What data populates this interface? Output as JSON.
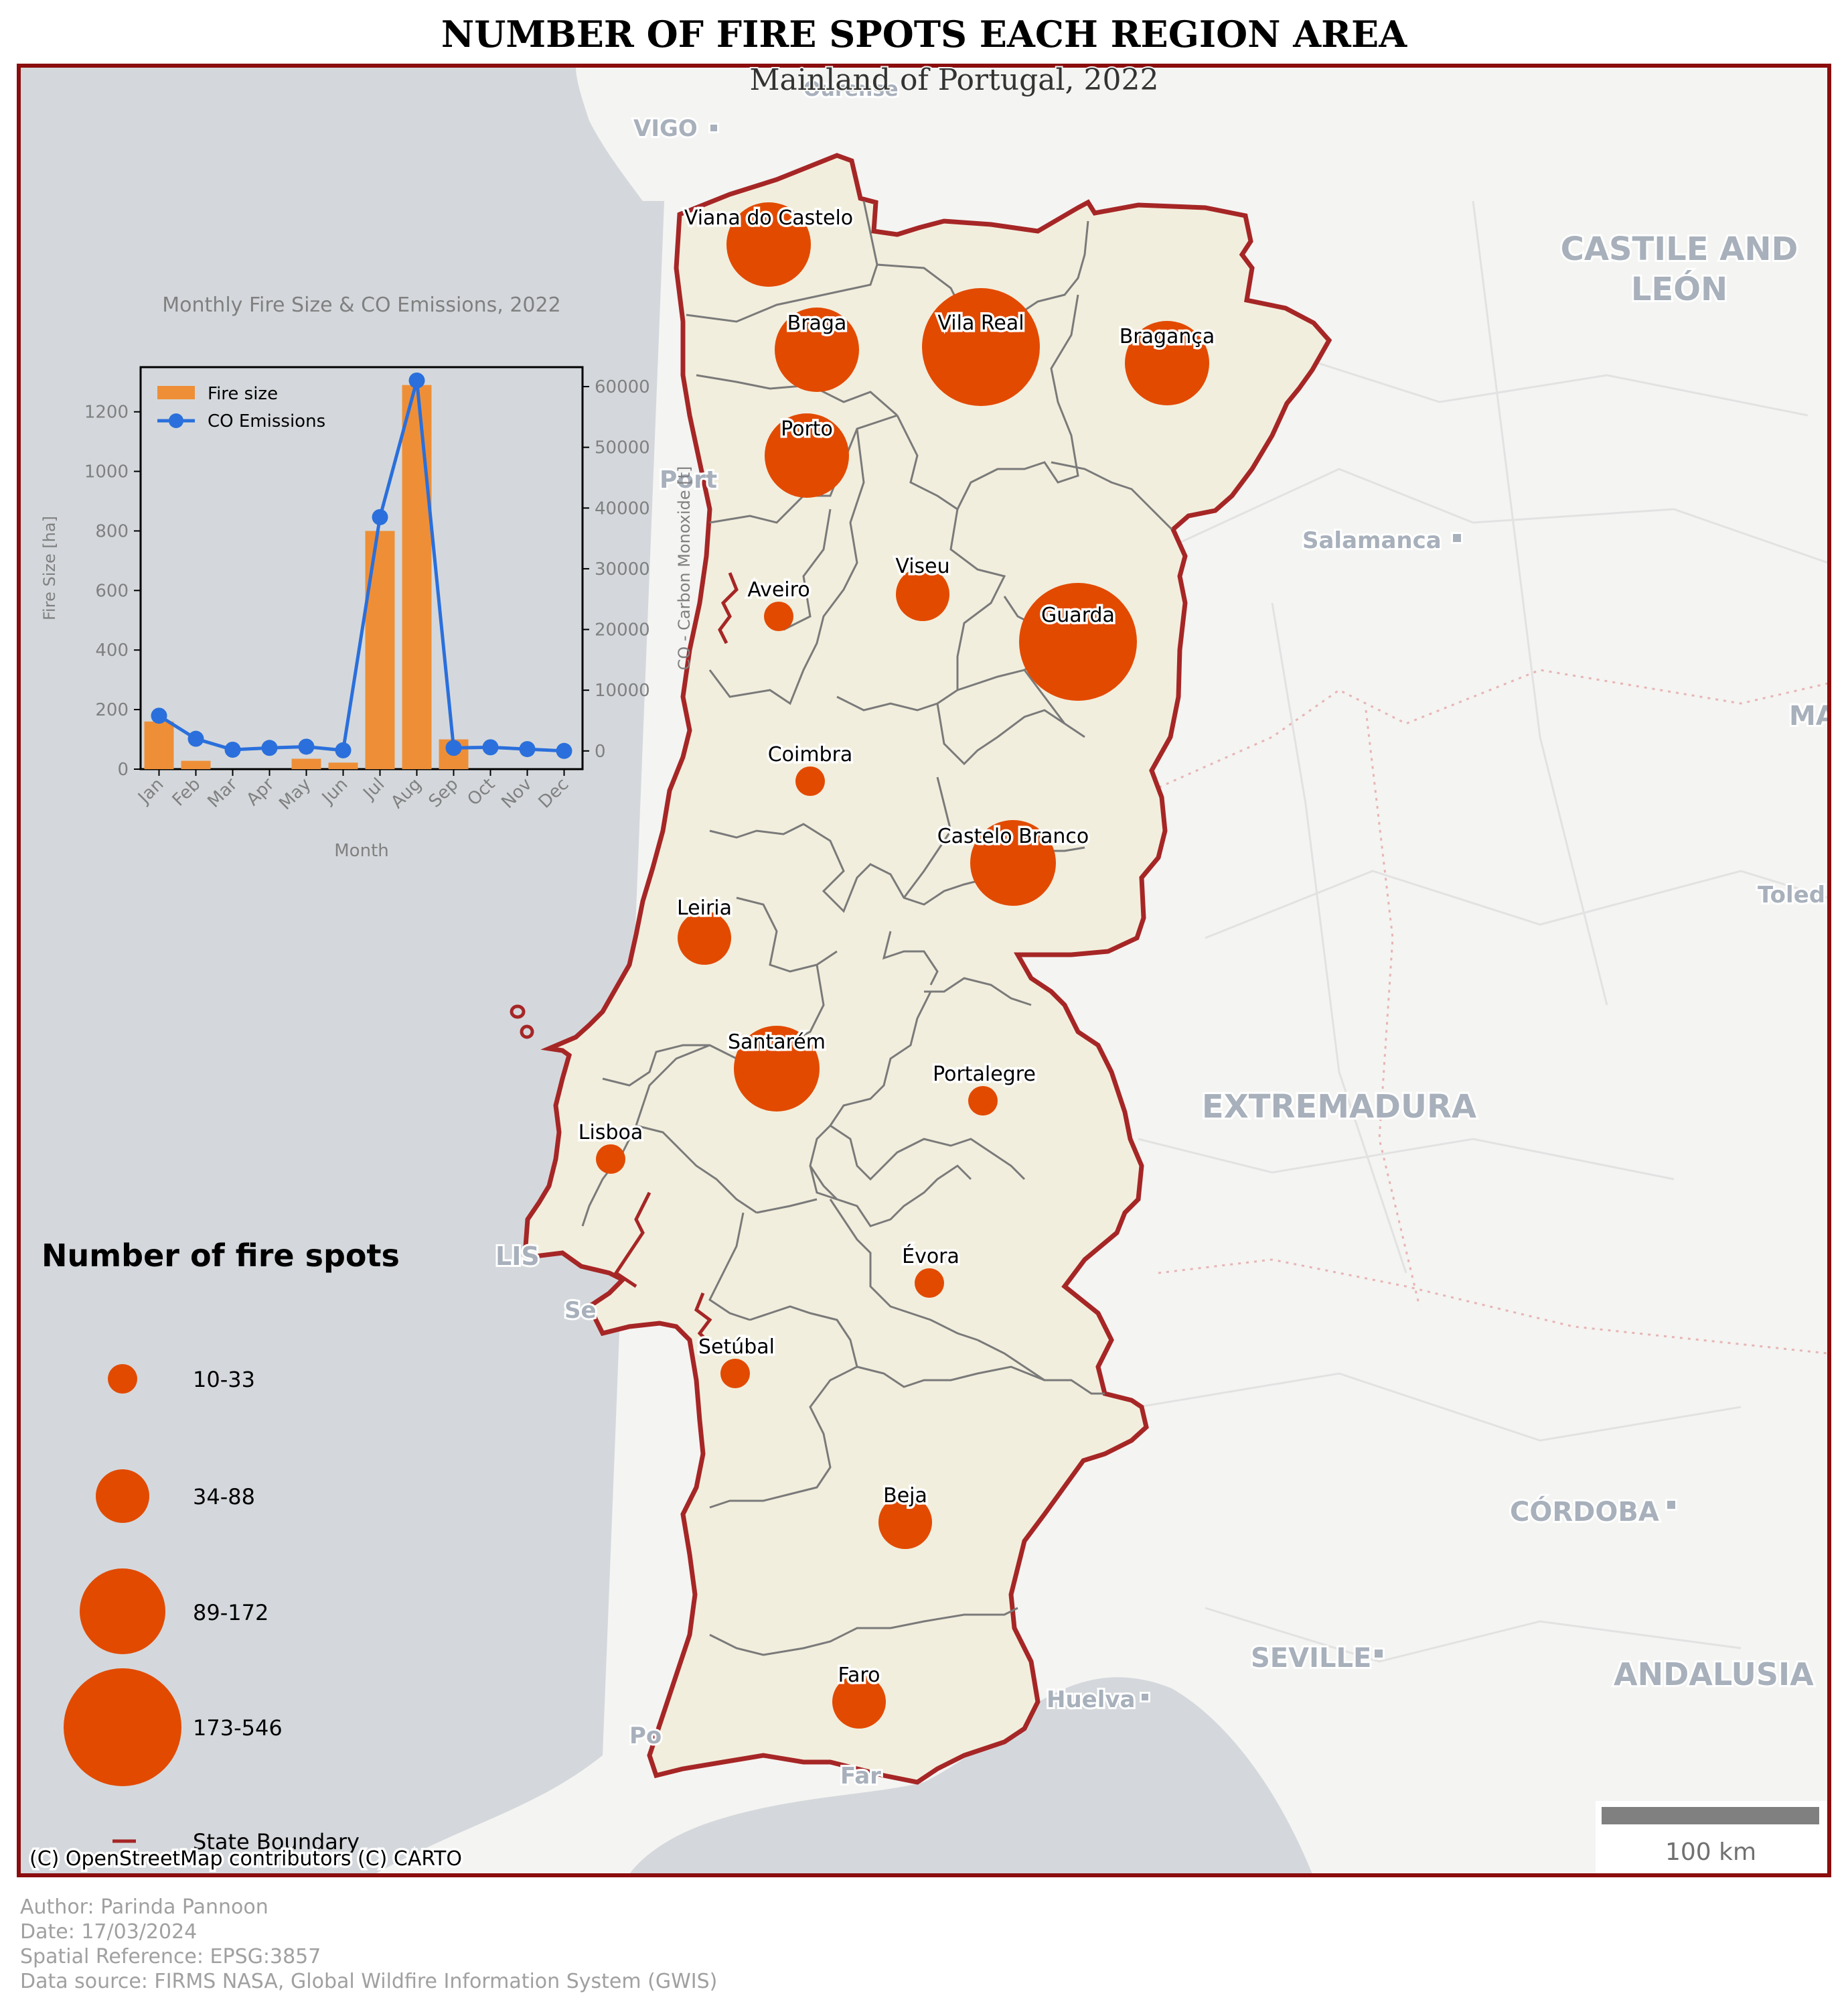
{
  "title": "NUMBER OF FIRE SPOTS EACH REGION AREA",
  "subtitle": "Mainland of Portugal, 2022",
  "colors": {
    "frame": "#8b0d0d",
    "sea": "#d4d8dc",
    "land_other": "#f4f4f2",
    "portugal_fill": "#f2eedd",
    "boundary": "#a62626",
    "district_line": "#7a7a7a",
    "circle": "#e24a00",
    "bar": "#ee8f37",
    "line": "#2a6fdc",
    "footer_text": "#a0a0a0"
  },
  "basemap_labels": [
    {
      "id": "vigo",
      "text": "VIGO",
      "dot": true
    },
    {
      "id": "ourense",
      "text": "Ourense",
      "dot": false
    },
    {
      "id": "castile1",
      "text": "CASTILE AND",
      "dot": false
    },
    {
      "id": "castile2",
      "text": "LEÓN",
      "dot": false
    },
    {
      "id": "salamanca",
      "text": "Salamanca",
      "dot": true
    },
    {
      "id": "ma",
      "text": "MA",
      "dot": false
    },
    {
      "id": "toledo",
      "text": "Toled",
      "dot": false
    },
    {
      "id": "extremadura",
      "text": "EXTREMADURA",
      "dot": false
    },
    {
      "id": "cordoba",
      "text": "CÓRDOBA",
      "dot": true
    },
    {
      "id": "seville",
      "text": "SEVILLE",
      "dot": true
    },
    {
      "id": "huelva",
      "text": "Huelva",
      "dot": true
    },
    {
      "id": "andalusia",
      "text": "ANDALUSIA",
      "dot": false
    },
    {
      "id": "porto_bg",
      "text": "Port",
      "dot": false
    },
    {
      "id": "lisboa_bg",
      "text": "LIS",
      "dot": false
    },
    {
      "id": "setubal_bg",
      "text": "Se",
      "dot": false
    },
    {
      "id": "portimao_bg",
      "text": "Po",
      "dot": false
    },
    {
      "id": "faro_bg",
      "text": "Far",
      "dot": false
    }
  ],
  "districts": [
    {
      "name": "Viana do Castelo",
      "class": "34-88"
    },
    {
      "name": "Braga",
      "class": "34-88"
    },
    {
      "name": "Vila Real",
      "class": "173-546"
    },
    {
      "name": "Bragança",
      "class": "34-88"
    },
    {
      "name": "Porto",
      "class": "34-88"
    },
    {
      "name": "Aveiro",
      "class": "10-33"
    },
    {
      "name": "Viseu",
      "class": "34-88"
    },
    {
      "name": "Guarda",
      "class": "173-546"
    },
    {
      "name": "Coimbra",
      "class": "10-33"
    },
    {
      "name": "Castelo Branco",
      "class": "89-172"
    },
    {
      "name": "Leiria",
      "class": "34-88"
    },
    {
      "name": "Santarém",
      "class": "89-172"
    },
    {
      "name": "Portalegre",
      "class": "10-33"
    },
    {
      "name": "Lisboa",
      "class": "10-33"
    },
    {
      "name": "Évora",
      "class": "10-33"
    },
    {
      "name": "Setúbal",
      "class": "10-33"
    },
    {
      "name": "Beja",
      "class": "34-88"
    },
    {
      "name": "Faro",
      "class": "34-88"
    }
  ],
  "legend": {
    "title": "Number of fire spots",
    "items": [
      "10-33",
      "34-88",
      "89-172",
      "173-546"
    ],
    "boundary_label": "State Boundary"
  },
  "attribution": "(C) OpenStreetMap contributors (C) CARTO",
  "scalebar": {
    "label": "100 km"
  },
  "footer": {
    "author": "Author: Parinda Pannoon",
    "date": "Date: 17/03/2024",
    "srs": "Spatial Reference: EPSG:3857",
    "source": "Data source: FIRMS NASA, Global Wildfire Information System (GWIS)"
  },
  "chart_data": {
    "type": "bar",
    "title": "Monthly Fire Size & CO Emissions, 2022",
    "xlabel": "Month",
    "ylabel": "Fire Size [ha]",
    "y2label": "CO - Carbon Monoxide [t]",
    "categories": [
      "Jan",
      "Feb",
      "Mar",
      "Apr",
      "May",
      "Jun",
      "Jul",
      "Aug",
      "Sep",
      "Oct",
      "Nov",
      "Dec"
    ],
    "series": [
      {
        "name": "Fire size",
        "type": "bar",
        "axis": "left",
        "values": [
          160,
          28,
          0,
          0,
          35,
          22,
          800,
          1290,
          100,
          0,
          0,
          0
        ]
      },
      {
        "name": "CO Emissions",
        "type": "line",
        "axis": "right",
        "values": [
          5800,
          2000,
          200,
          500,
          700,
          100,
          38500,
          61000,
          500,
          600,
          300,
          0
        ]
      }
    ],
    "ylim": [
      0,
      1350
    ],
    "y2lim": [
      -3000,
      63200
    ],
    "yticks": [
      0,
      200,
      400,
      600,
      800,
      1000,
      1200
    ],
    "y2ticks": [
      0,
      10000,
      20000,
      30000,
      40000,
      50000,
      60000
    ],
    "legend_position": "top-left",
    "grid": false
  }
}
